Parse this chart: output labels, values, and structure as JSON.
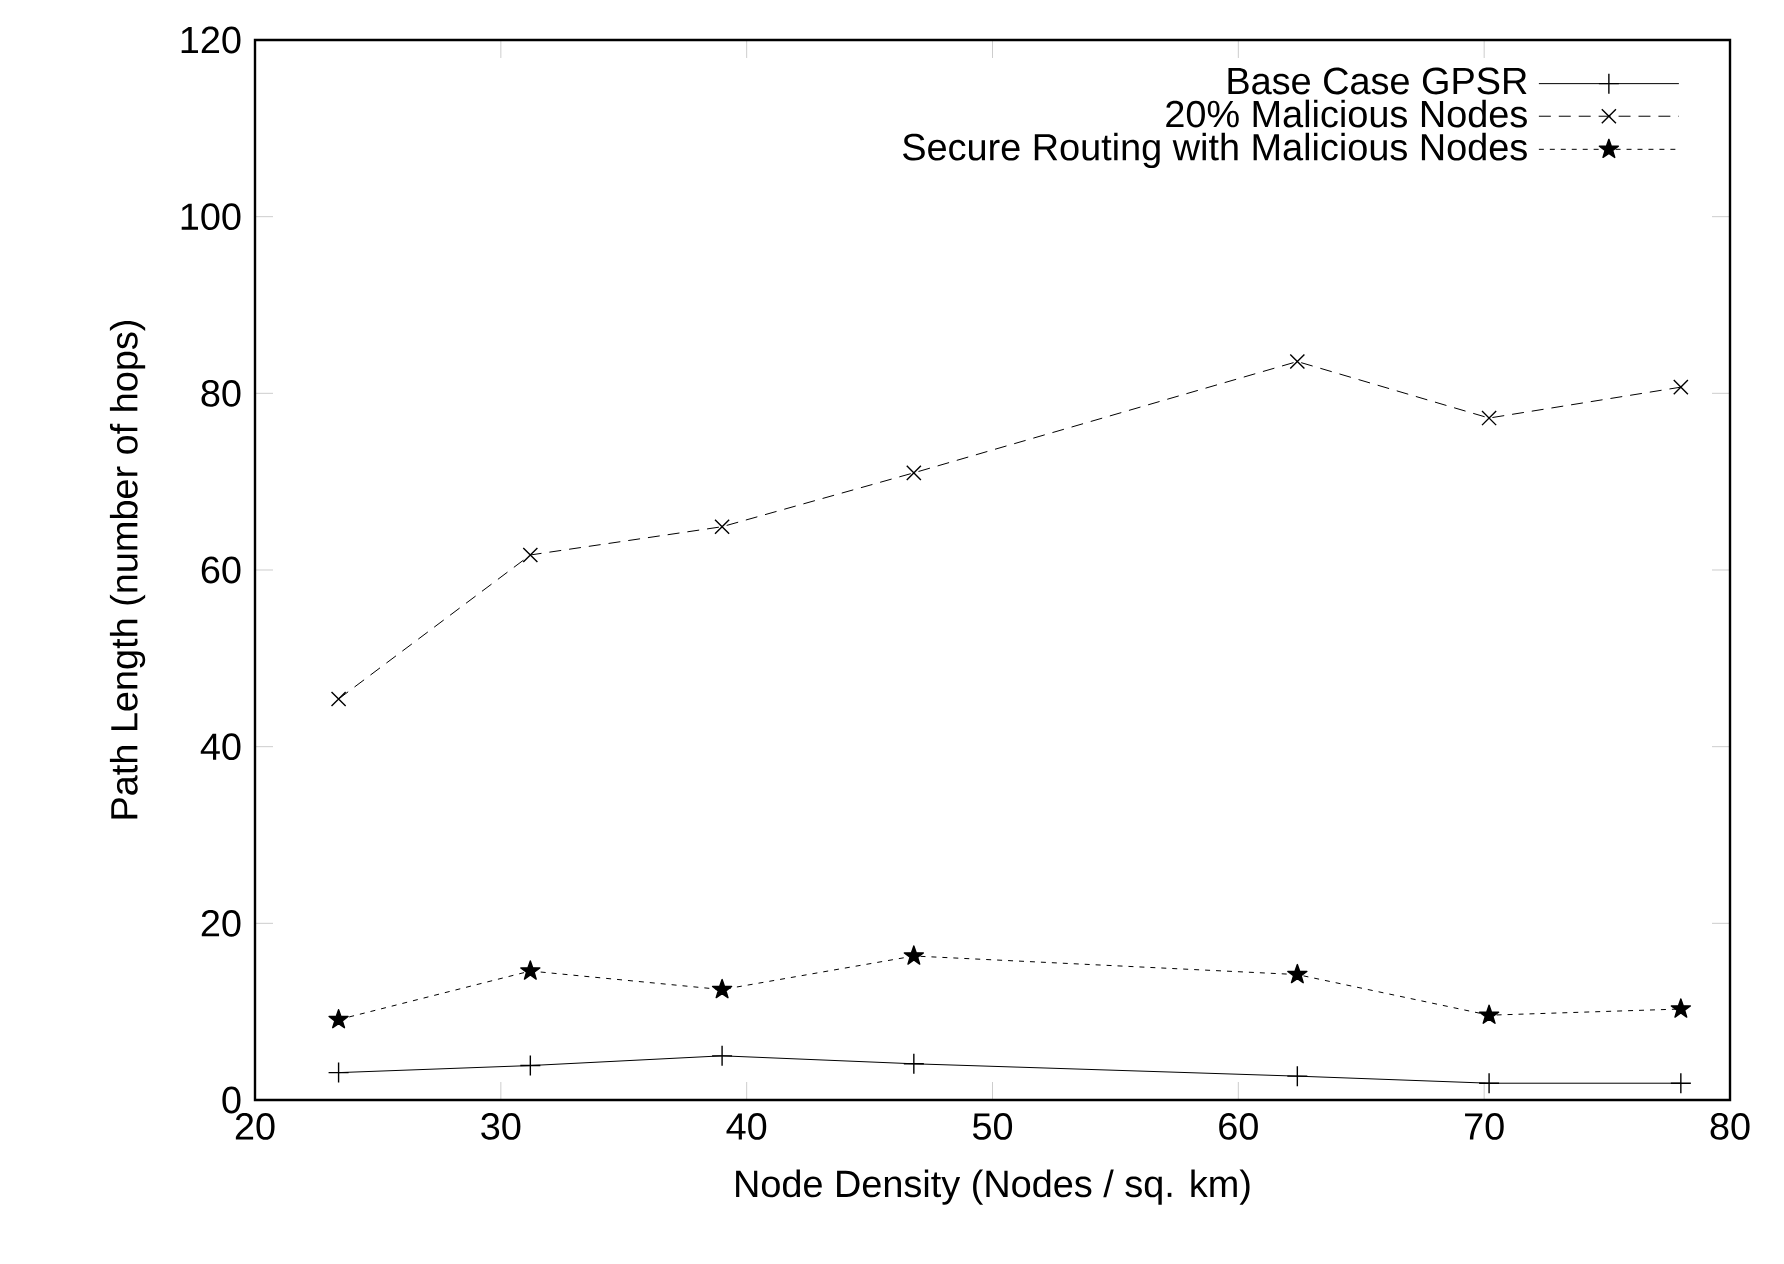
{
  "chart_data": {
    "type": "line",
    "xlabel": "Node Density (Nodes / sq. km)",
    "ylabel": "Path Length (number of hops)",
    "x": [
      23.4,
      31.2,
      39.0,
      46.8,
      62.4,
      70.2,
      78.0
    ],
    "series": [
      {
        "name": "Base Case GPSR",
        "color": "#000000",
        "marker": "plus",
        "line_style": "solid",
        "values": [
          3.1,
          3.9,
          5.0,
          4.1,
          2.7,
          1.9,
          1.9
        ]
      },
      {
        "name": "20% Malicious Nodes",
        "color": "#000000",
        "marker": "cross",
        "line_style": "dashed",
        "values": [
          45.4,
          61.7,
          64.9,
          71.0,
          83.6,
          77.2,
          80.7
        ]
      },
      {
        "name": "Secure Routing with Malicious Nodes",
        "color": "#000000",
        "marker": "star",
        "line_style": "dotted",
        "values": [
          9.1,
          14.6,
          12.5,
          16.3,
          14.2,
          9.6,
          10.3
        ]
      }
    ],
    "xlim": [
      20,
      80
    ],
    "ylim": [
      0,
      120
    ],
    "xticks": [
      20,
      30,
      40,
      50,
      60,
      70,
      80
    ],
    "yticks": [
      0,
      20,
      40,
      60,
      80,
      100,
      120
    ],
    "grid": false,
    "legend": "top right"
  }
}
